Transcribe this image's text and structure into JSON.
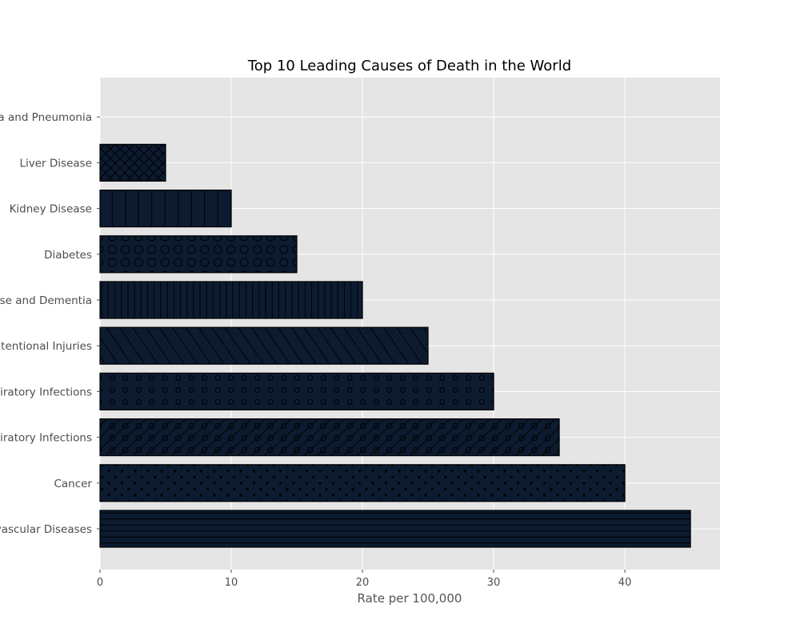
{
  "chart_data": {
    "type": "bar",
    "orientation": "horizontal",
    "title": "Top 10 Leading Causes of Death in the World",
    "xlabel": "Rate per 100,000",
    "ylabel": "",
    "xlim": [
      0,
      47.25
    ],
    "xticks": [
      0,
      10,
      20,
      30,
      40
    ],
    "grid": true,
    "categories": [
      "Cardiovascular Diseases",
      "Cancer",
      "Lower Respiratory Infections",
      "Upper Respiratory Infections",
      "Unintentional Injuries",
      "Alzheimer's Disease and Dementia",
      "Diabetes",
      "Kidney Disease",
      "Liver Disease",
      "Influenza and Pneumonia"
    ],
    "values": [
      45,
      40,
      35,
      30,
      25,
      20,
      15,
      10,
      5,
      0
    ],
    "hatches": [
      "-",
      ".",
      "/o",
      "o",
      "\\",
      "|",
      "O",
      "|",
      "x",
      "+"
    ],
    "colors": {
      "bar": "#0c1b30",
      "edge": "#000000",
      "plot_bg": "#e5e5e5",
      "grid": "#ffffff"
    }
  }
}
